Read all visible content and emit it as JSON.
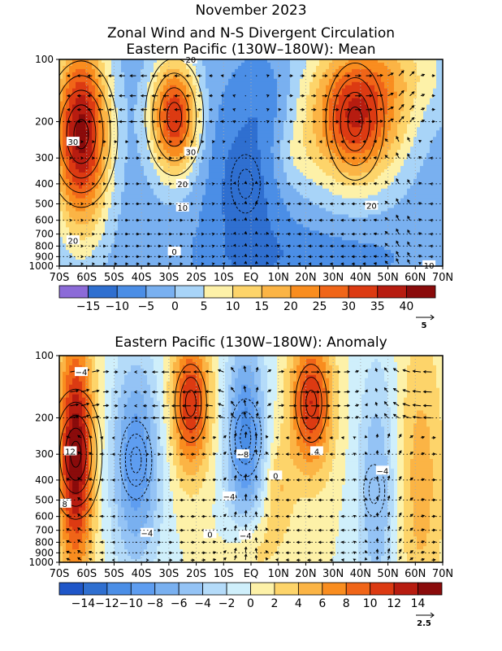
{
  "titles": {
    "line1": "November 2023",
    "line2": "Zonal Wind and N-S Divergent Circulation",
    "line3": "Eastern Pacific (130W–180W): Mean",
    "panel2": "Eastern Pacific (130W–180W): Anomaly"
  },
  "chart_data": [
    {
      "type": "heatmap",
      "title": "Eastern Pacific (130W–180W): Mean",
      "x_ticks": [
        "70S",
        "60S",
        "50S",
        "40S",
        "30S",
        "20S",
        "10S",
        "EQ",
        "10N",
        "20N",
        "30N",
        "40N",
        "50N",
        "60N",
        "70N"
      ],
      "y_ticks": [
        "100",
        "200",
        "300",
        "400",
        "500",
        "600",
        "700",
        "800",
        "900",
        "1000"
      ],
      "y_scale": "log-pressure",
      "colorbar": {
        "ticks": [
          "−15",
          "−10",
          "−5",
          "0",
          "5",
          "10",
          "15",
          "20",
          "25",
          "30",
          "35",
          "40"
        ],
        "colors": [
          "#8c6bd8",
          "#2f6fd0",
          "#4b8ee6",
          "#79b0f0",
          "#a8d4f8",
          "#fdf1a8",
          "#fdd46a",
          "#fbb445",
          "#f98d1f",
          "#f06518",
          "#dc3a12",
          "#b71c10",
          "#8a0b0b"
        ]
      },
      "vector_reference": "5",
      "contour_labels": [
        "20",
        "30",
        "20",
        "10",
        "0",
        "30",
        "20",
        "20",
        "10"
      ],
      "features": [
        {
          "name": "southern-jet",
          "lat": -62,
          "p": 230,
          "value": 40
        },
        {
          "name": "subtropical-jet-south",
          "lat": -28,
          "p": 190,
          "value": 35
        },
        {
          "name": "northern-jet",
          "lat": 38,
          "p": 200,
          "value": 33
        },
        {
          "name": "equatorial-easterlies",
          "lat": -2,
          "p": 400,
          "value": -8
        }
      ]
    },
    {
      "type": "heatmap",
      "title": "Eastern Pacific (130W–180W): Anomaly",
      "x_ticks": [
        "70S",
        "60S",
        "50S",
        "40S",
        "30S",
        "20S",
        "10S",
        "EQ",
        "10N",
        "20N",
        "30N",
        "40N",
        "50N",
        "60N",
        "70N"
      ],
      "y_ticks": [
        "100",
        "200",
        "300",
        "400",
        "500",
        "600",
        "700",
        "800",
        "900",
        "1000"
      ],
      "y_scale": "log-pressure",
      "colorbar": {
        "ticks": [
          "−14",
          "−12",
          "−10",
          "−8",
          "−6",
          "−4",
          "−2",
          "0",
          "2",
          "4",
          "6",
          "8",
          "10",
          "12",
          "14"
        ],
        "colors": [
          "#1f56c8",
          "#2f6fd0",
          "#4b8ee6",
          "#5e9df0",
          "#79b0f0",
          "#94c3f5",
          "#b4dbf9",
          "#cfeffb",
          "#fdf1a8",
          "#fdd46a",
          "#fbb445",
          "#f98d1f",
          "#f06518",
          "#dc3a12",
          "#b71c10",
          "#8a0b0b"
        ]
      },
      "vector_reference": "2.5",
      "contour_labels": [
        "−4",
        "12",
        "8",
        "−4",
        "−8",
        "−4",
        "4",
        "−4",
        "0",
        "0",
        "−4"
      ],
      "features": [
        {
          "name": "anomaly-south-max",
          "lat": -64,
          "p": 300,
          "value": 14
        },
        {
          "name": "anomaly-south-min",
          "lat": -42,
          "p": 320,
          "value": -9
        },
        {
          "name": "anomaly-subtrop-south-max",
          "lat": -22,
          "p": 170,
          "value": 10
        },
        {
          "name": "anomaly-eq-min",
          "lat": -2,
          "p": 250,
          "value": -10
        },
        {
          "name": "anomaly-north-max",
          "lat": 22,
          "p": 170,
          "value": 10
        },
        {
          "name": "anomaly-north-min",
          "lat": 45,
          "p": 450,
          "value": -5
        }
      ]
    }
  ]
}
